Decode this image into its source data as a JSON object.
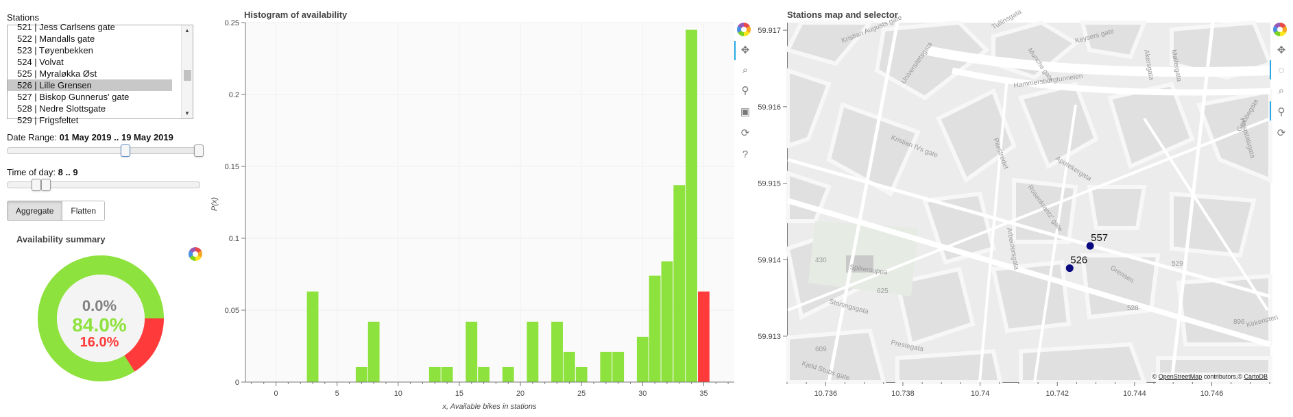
{
  "left": {
    "stations_label": "Stations",
    "stations": [
      "521 | Jess Carlsens gate",
      "522 | Mandalls gate",
      "523 | Tøyenbekken",
      "524 | Volvat",
      "525 | Myraløkka Øst",
      "526 | Lille Grensen",
      "527 | Biskop Gunnerus' gate",
      "528 | Nedre Slottsgate",
      "529 | Frigsfeltet"
    ],
    "selected_station": "526 | Lille Grensen",
    "date_range_label": "Date Range:",
    "date_range_value": "01 May 2019 .. 19 May 2019",
    "time_label": "Time of day:",
    "time_value": "8 .. 9",
    "btn_aggregate": "Aggregate",
    "btn_flatten": "Flatten",
    "summary_title": "Availability summary",
    "pct_empty": "0.0%",
    "pct_available": "84.0%",
    "pct_full": "16.0%"
  },
  "colors": {
    "available": "#8ee23d",
    "full": "#ff3a3a",
    "empty": "#808080",
    "station_dot": "#0a0a80"
  },
  "hist_title": "Histogram of availability",
  "map_title": "Stations map and selector",
  "chart_data": [
    {
      "type": "bar",
      "title": "Histogram of availability",
      "xlabel": "x, Available bikes in stations",
      "ylabel": "P(x)",
      "xlim": [
        -2.5,
        37.5
      ],
      "ylim": [
        0,
        0.25
      ],
      "xticks": [
        0,
        5,
        10,
        15,
        20,
        25,
        30,
        35
      ],
      "yticks": [
        0,
        0.05,
        0.1,
        0.15,
        0.2,
        0.25
      ],
      "ytick_labels": [
        "0",
        "0.05",
        "0.1",
        "0.15",
        "0.2",
        "0.25"
      ],
      "series": [
        {
          "color": "#8ee23d",
          "x": [
            3,
            7,
            8,
            13,
            14,
            16,
            17,
            19,
            21,
            23,
            24,
            25,
            27,
            28,
            30,
            31,
            32,
            33,
            34
          ],
          "values": [
            0.063,
            0.0105,
            0.042,
            0.0105,
            0.0105,
            0.042,
            0.0105,
            0.0105,
            0.042,
            0.042,
            0.021,
            0.0105,
            0.021,
            0.021,
            0.0315,
            0.074,
            0.084,
            0.137,
            0.245
          ]
        },
        {
          "color": "#ff3a3a",
          "x": [
            35
          ],
          "values": [
            0.063
          ]
        }
      ],
      "grid": true
    },
    {
      "type": "pie",
      "title": "Availability summary",
      "categories": [
        "0.0%",
        "84.0%",
        "16.0%"
      ],
      "values": [
        0.0,
        84.0,
        16.0
      ],
      "colors": [
        "#808080",
        "#8ee23d",
        "#ff3a3a"
      ]
    },
    {
      "type": "scatter",
      "title": "Stations map and selector",
      "xlim": [
        10.735,
        10.7475
      ],
      "ylim": [
        59.9124,
        59.9171
      ],
      "xticks": [
        10.736,
        10.738,
        10.74,
        10.742,
        10.744,
        10.746
      ],
      "yticks": [
        59.913,
        59.914,
        59.915,
        59.916,
        59.917
      ],
      "points": [
        {
          "label": "557",
          "x": 10.74285,
          "y": 59.91418
        },
        {
          "label": "526",
          "x": 10.74232,
          "y": 59.91389
        }
      ]
    }
  ],
  "map": {
    "streets": [
      "Kristian Augusts gate",
      "Hammersborgtunnelen",
      "Kristian IVs gate",
      "Universitetsgata",
      "Rosenkrantz' gate",
      "Pilestredet",
      "Apotekergata",
      "Arbeidersgata",
      "Spikersuppa",
      "Stortingsgata",
      "Prestegata",
      "Kjeld Stubs gate",
      "Grensen",
      "Munchs gate",
      "Keysers gate",
      "Kirkeristen",
      "Møllergata",
      "Akersgata",
      "Grubbegata",
      "Tullinsgata",
      "Hospitalsgata"
    ],
    "attribution_prefix": "© ",
    "attribution_osm": "OpenStreetMap",
    "attribution_mid": " contributors,© ",
    "attribution_carto": "CartoDB",
    "faded_ids": [
      "430",
      "625",
      "528",
      "529",
      "896",
      "609"
    ]
  }
}
